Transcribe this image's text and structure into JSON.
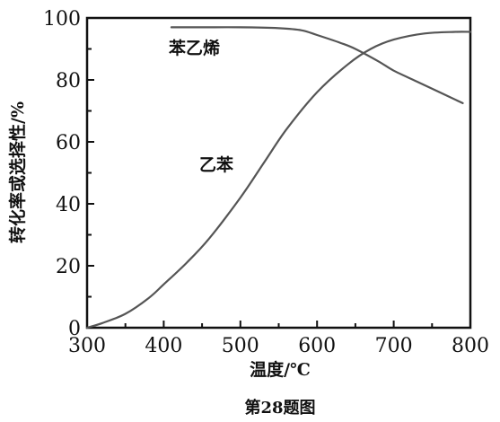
{
  "chart_data": {
    "type": "line",
    "title": "",
    "caption": "第28题图",
    "xlabel": "温度/℃",
    "ylabel": "转化率或选择性/%",
    "xlim": [
      300,
      800
    ],
    "ylim": [
      0,
      100
    ],
    "x_ticks": [
      "300",
      "400",
      "500",
      "600",
      "700",
      "800"
    ],
    "y_ticks": [
      "0",
      "20",
      "40",
      "60",
      "80",
      "100"
    ],
    "grid": false,
    "series": [
      {
        "name": "乙苯",
        "color": "#555555",
        "x": [
          300,
          320,
          350,
          380,
          400,
          430,
          460,
          500,
          530,
          560,
          600,
          640,
          670,
          700,
          740,
          780,
          800
        ],
        "y": [
          0,
          1.5,
          4.5,
          9.5,
          14,
          21,
          29,
          42,
          53,
          64,
          76,
          85,
          90,
          93,
          95,
          95.5,
          95.5
        ]
      },
      {
        "name": "苯乙烯",
        "color": "#555555",
        "x": [
          410,
          450,
          500,
          550,
          580,
          600,
          630,
          650,
          680,
          700,
          730,
          760,
          790
        ],
        "y": [
          97,
          97,
          97,
          96.7,
          96,
          94.5,
          92,
          90,
          86,
          83,
          79.5,
          76,
          72.5
        ]
      }
    ]
  }
}
